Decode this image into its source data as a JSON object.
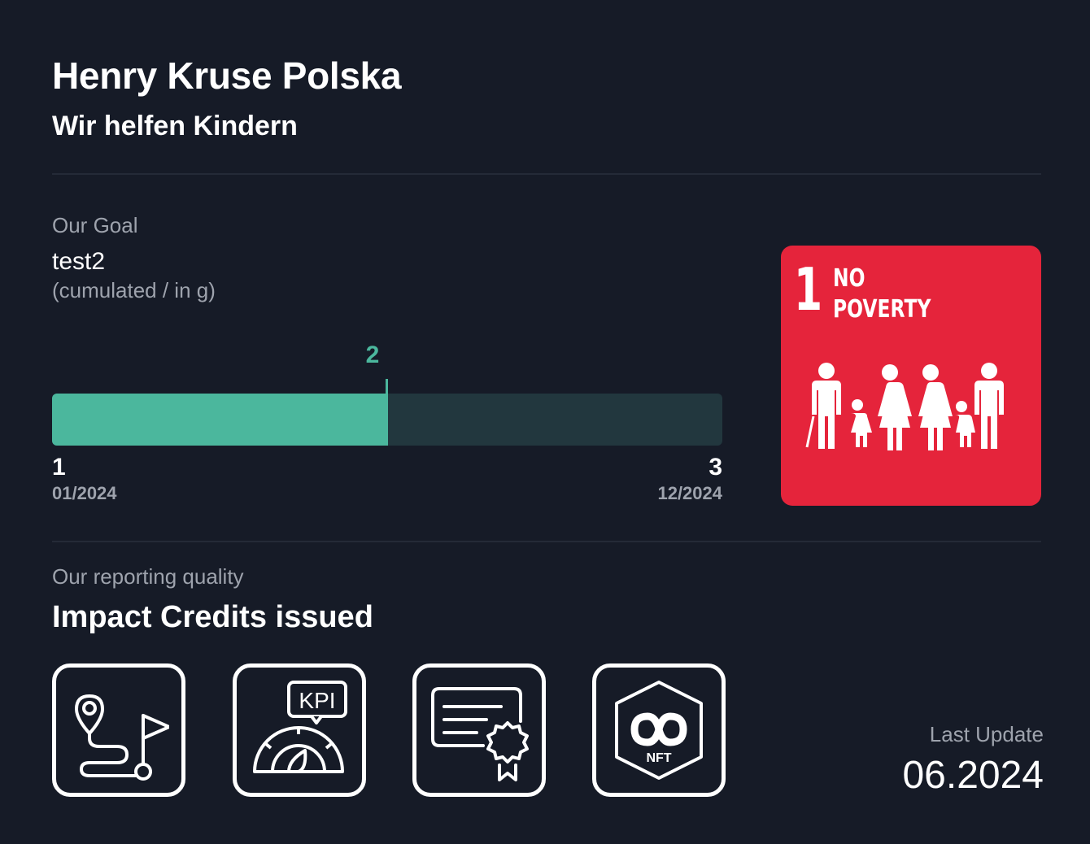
{
  "header": {
    "title": "Henry Kruse Polska",
    "subtitle": "Wir helfen Kindern"
  },
  "goal": {
    "label": "Our Goal",
    "name": "test2",
    "unit": "(cumulated / in g)",
    "start_value": "1",
    "start_date": "01/2024",
    "current_value": "2",
    "end_value": "3",
    "end_date": "12/2024",
    "progress_fraction": 0.5,
    "accent_color": "#4bb79d",
    "track_color": "#22373e"
  },
  "sdg": {
    "number": "1",
    "line1": "NO",
    "line2": "POVERTY",
    "icon": "family-icon",
    "color": "#e5243b"
  },
  "quality": {
    "label": "Our reporting quality",
    "title": "Impact Credits issued",
    "badges": [
      {
        "icon": "route-map-icon"
      },
      {
        "icon": "kpi-gauge-icon",
        "text": "KPI"
      },
      {
        "icon": "certificate-icon"
      },
      {
        "icon": "nft-icon",
        "text": "NFT"
      }
    ]
  },
  "last_update": {
    "label": "Last Update",
    "value": "06.2024"
  },
  "colors": {
    "background": "#161b27",
    "divider": "#242a37",
    "muted_text": "#9ea3ad"
  }
}
